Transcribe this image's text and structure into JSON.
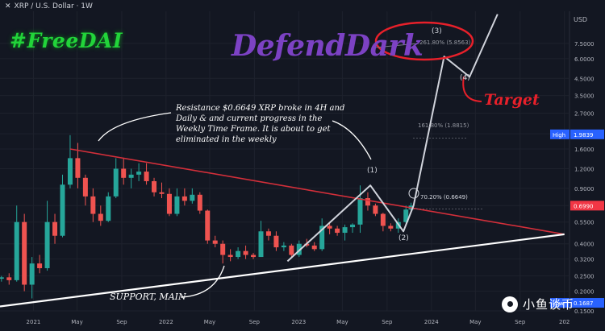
{
  "header": {
    "close_glyph": "✕",
    "symbol": "XRP / U.S. Dollar · 1W"
  },
  "watermarks": {
    "free": "#FreeDAI",
    "author": "DefendDark"
  },
  "annotations": {
    "note": "Resistance $0.6649 XRP broke in 4H and Daily & and current progress in the Weekly Time Frame. It is about to get eliminated in the weekly",
    "target": "Target",
    "support": "SUPPORT, MAIN",
    "fib_1": "161.80% (1.8815)",
    "fib_2": "261.80% (5.8563)",
    "fib_3": "70.20% (0.6649)",
    "wave_1": "(1)",
    "wave_2": "(2)",
    "wave_3": "(3)",
    "wave_4": "(4)"
  },
  "brand": {
    "name": "小鱼谈币"
  },
  "chart_data": {
    "type": "candlestick",
    "y_scale": "log",
    "ylim": [
      0.15,
      12
    ],
    "xlim": [
      "2020-10-01",
      "2025-01-15"
    ],
    "y_axis_title": "USD",
    "y_ticks": [
      7.5,
      6.0,
      4.5,
      3.5,
      2.7,
      2.0,
      1.6,
      1.2,
      0.9,
      0.7,
      0.55,
      0.4,
      0.32,
      0.25,
      0.2,
      0.15
    ],
    "y_tick_labels": [
      "7.5000",
      "6.0000",
      "4.5000",
      "3.5000",
      "2.7000",
      "2.0000",
      "1.6000",
      "1.2000",
      "0.9000",
      "0.7000",
      "0.5500",
      "0.4000",
      "0.3200",
      "0.2500",
      "0.2000",
      "0.1500"
    ],
    "x_ticks": [
      "2021",
      "May",
      "Sep",
      "2022",
      "May",
      "Sep",
      "2023",
      "May",
      "Sep",
      "2024",
      "May",
      "Sep",
      "202"
    ],
    "x_tick_dates": [
      "2021-01-01",
      "2021-05-01",
      "2021-09-01",
      "2022-01-01",
      "2022-05-01",
      "2022-09-01",
      "2023-01-01",
      "2023-05-01",
      "2023-09-01",
      "2024-01-01",
      "2024-05-01",
      "2024-09-01",
      "2025-01-01"
    ],
    "price_labels": [
      {
        "text": "High",
        "value_text": "1.9839",
        "value": 1.9839,
        "color": "#2962ff"
      },
      {
        "text": "",
        "value_text": "0.6990",
        "value": 0.699,
        "color": "#f23645"
      },
      {
        "text": "Low",
        "value_text": "0.1687",
        "value": 0.1687,
        "color": "#2962ff"
      }
    ],
    "candles_ohlc": [
      [
        "2020-10-05",
        0.24,
        0.25,
        0.23,
        0.245
      ],
      [
        "2020-10-26",
        0.245,
        0.26,
        0.22,
        0.235
      ],
      [
        "2020-11-16",
        0.235,
        0.7,
        0.23,
        0.55
      ],
      [
        "2020-12-07",
        0.55,
        0.62,
        0.2,
        0.22
      ],
      [
        "2020-12-28",
        0.22,
        0.33,
        0.18,
        0.3
      ],
      [
        "2021-01-18",
        0.3,
        0.34,
        0.26,
        0.28
      ],
      [
        "2021-02-08",
        0.28,
        0.75,
        0.27,
        0.55
      ],
      [
        "2021-03-01",
        0.55,
        0.62,
        0.4,
        0.45
      ],
      [
        "2021-03-22",
        0.45,
        1.1,
        0.44,
        0.95
      ],
      [
        "2021-04-12",
        0.95,
        1.96,
        0.9,
        1.4
      ],
      [
        "2021-05-03",
        1.4,
        1.75,
        0.9,
        1.05
      ],
      [
        "2021-05-24",
        1.05,
        1.1,
        0.7,
        0.8
      ],
      [
        "2021-06-14",
        0.8,
        0.9,
        0.55,
        0.62
      ],
      [
        "2021-07-05",
        0.62,
        0.7,
        0.52,
        0.56
      ],
      [
        "2021-07-26",
        0.56,
        0.85,
        0.55,
        0.8
      ],
      [
        "2021-08-16",
        0.8,
        1.4,
        0.78,
        1.2
      ],
      [
        "2021-09-06",
        1.2,
        1.4,
        0.95,
        1.05
      ],
      [
        "2021-09-27",
        1.05,
        1.2,
        0.9,
        1.1
      ],
      [
        "2021-10-18",
        1.1,
        1.3,
        1.0,
        1.15
      ],
      [
        "2021-11-08",
        1.15,
        1.3,
        0.95,
        1.0
      ],
      [
        "2021-11-29",
        1.0,
        1.05,
        0.8,
        0.85
      ],
      [
        "2021-12-20",
        0.85,
        0.98,
        0.78,
        0.83
      ],
      [
        "2022-01-10",
        0.83,
        0.9,
        0.6,
        0.62
      ],
      [
        "2022-01-31",
        0.62,
        0.9,
        0.6,
        0.8
      ],
      [
        "2022-02-21",
        0.8,
        0.9,
        0.7,
        0.75
      ],
      [
        "2022-03-14",
        0.75,
        0.9,
        0.72,
        0.82
      ],
      [
        "2022-04-04",
        0.82,
        0.85,
        0.62,
        0.65
      ],
      [
        "2022-04-25",
        0.65,
        0.66,
        0.4,
        0.42
      ],
      [
        "2022-05-16",
        0.42,
        0.45,
        0.38,
        0.4
      ],
      [
        "2022-06-06",
        0.4,
        0.42,
        0.3,
        0.34
      ],
      [
        "2022-06-27",
        0.34,
        0.37,
        0.31,
        0.33
      ],
      [
        "2022-07-18",
        0.33,
        0.38,
        0.32,
        0.36
      ],
      [
        "2022-08-08",
        0.36,
        0.39,
        0.32,
        0.34
      ],
      [
        "2022-08-29",
        0.34,
        0.35,
        0.32,
        0.33
      ],
      [
        "2022-09-19",
        0.33,
        0.56,
        0.33,
        0.48
      ],
      [
        "2022-10-10",
        0.48,
        0.5,
        0.42,
        0.45
      ],
      [
        "2022-10-31",
        0.45,
        0.48,
        0.36,
        0.38
      ],
      [
        "2022-11-21",
        0.38,
        0.41,
        0.36,
        0.39
      ],
      [
        "2022-12-12",
        0.39,
        0.4,
        0.33,
        0.34
      ],
      [
        "2023-01-02",
        0.34,
        0.42,
        0.33,
        0.4
      ],
      [
        "2023-01-23",
        0.4,
        0.43,
        0.38,
        0.39
      ],
      [
        "2023-02-13",
        0.39,
        0.41,
        0.36,
        0.37
      ],
      [
        "2023-03-06",
        0.37,
        0.58,
        0.36,
        0.52
      ],
      [
        "2023-03-27",
        0.52,
        0.55,
        0.46,
        0.5
      ],
      [
        "2023-04-17",
        0.5,
        0.52,
        0.45,
        0.47
      ],
      [
        "2023-05-08",
        0.47,
        0.53,
        0.42,
        0.51
      ],
      [
        "2023-05-29",
        0.51,
        0.54,
        0.47,
        0.53
      ],
      [
        "2023-06-19",
        0.53,
        0.94,
        0.47,
        0.78
      ],
      [
        "2023-07-10",
        0.78,
        0.85,
        0.65,
        0.7
      ],
      [
        "2023-07-31",
        0.7,
        0.72,
        0.6,
        0.62
      ],
      [
        "2023-08-21",
        0.62,
        0.63,
        0.48,
        0.52
      ],
      [
        "2023-09-11",
        0.52,
        0.54,
        0.48,
        0.5
      ],
      [
        "2023-10-02",
        0.5,
        0.58,
        0.47,
        0.55
      ],
      [
        "2023-10-23",
        0.55,
        0.7,
        0.54,
        0.66
      ],
      [
        "2023-11-06",
        0.66,
        0.73,
        0.65,
        0.699
      ]
    ],
    "overlay_lines": [
      {
        "name": "resistance",
        "points": [
          [
            "2021-04-12",
            1.6
          ],
          [
            "2025-01-01",
            0.46
          ]
        ]
      },
      {
        "name": "support",
        "points": [
          [
            "2020-10-01",
            0.16
          ],
          [
            "2025-01-01",
            0.46
          ]
        ]
      },
      {
        "name": "wave-projection",
        "points": [
          [
            "2022-12-01",
            0.31
          ],
          [
            "2023-07-17",
            0.94
          ],
          [
            "2023-10-16",
            0.48
          ],
          [
            "2023-11-13",
            0.7
          ],
          [
            "2024-02-05",
            6.2
          ],
          [
            "2024-04-15",
            4.6
          ],
          [
            "2024-07-01",
            11.5
          ]
        ]
      }
    ]
  }
}
